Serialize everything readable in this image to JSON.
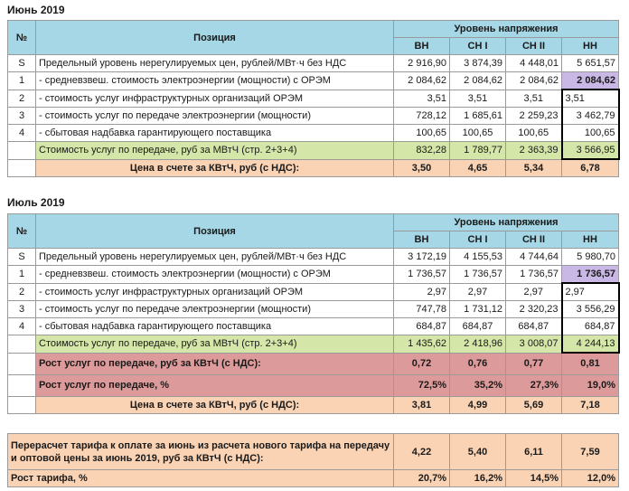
{
  "june": {
    "title": "Июнь 2019",
    "h_no": "№",
    "h_pos": "Позиция",
    "h_level": "Уровень напряжения",
    "cols": [
      "ВН",
      "СН I",
      "СН II",
      "НН"
    ],
    "rows": [
      {
        "id": "S",
        "label": "Предельный уровень нерегулируемых цен, рублей/МВт·ч без НДС",
        "v": [
          "2 916,90",
          "3 874,39",
          "4 448,01",
          "5 651,57"
        ]
      },
      {
        "id": "1",
        "label": "- средневзвеш. стоимость электроэнергии (мощности) с ОРЭМ",
        "v": [
          "2 084,62",
          "2 084,62",
          "2 084,62",
          "2 084,62"
        ]
      },
      {
        "id": "2",
        "label": "- стоимость услуг инфраструктурных организаций ОРЭМ",
        "v": [
          "3,51",
          "3,51",
          "3,51",
          "3,51"
        ]
      },
      {
        "id": "3",
        "label": "- стоимость услуг по передаче электроэнергии (мощности)",
        "v": [
          "728,12",
          "1 685,61",
          "2 259,23",
          "3 462,79"
        ]
      },
      {
        "id": "4",
        "label": "- сбытовая надбавка гарантирующего поставщика",
        "v": [
          "100,65",
          "100,65",
          "100,65",
          "100,65"
        ]
      }
    ],
    "cost": {
      "label": "Стоимость услуг по передаче, руб за МВтЧ (стр. 2+3+4)",
      "v": [
        "832,28",
        "1 789,77",
        "2 363,39",
        "3 566,95"
      ]
    },
    "price": {
      "label": "Цена в счете за КВтЧ, руб (с НДС):",
      "v": [
        "3,50",
        "4,65",
        "5,34",
        "6,78"
      ]
    }
  },
  "july": {
    "title": "Июль 2019",
    "h_no": "№",
    "h_pos": "Позиция",
    "h_level": "Уровень напряжения",
    "cols": [
      "ВН",
      "СН I",
      "СН II",
      "НН"
    ],
    "rows": [
      {
        "id": "S",
        "label": "Предельный уровень нерегулируемых цен, рублей/МВт·ч без НДС",
        "v": [
          "3 172,19",
          "4 155,53",
          "4 744,64",
          "5 980,70"
        ]
      },
      {
        "id": "1",
        "label": "- средневзвеш. стоимость электроэнергии (мощности) с ОРЭМ",
        "v": [
          "1 736,57",
          "1 736,57",
          "1 736,57",
          "1 736,57"
        ]
      },
      {
        "id": "2",
        "label": "- стоимость услуг инфраструктурных организаций ОРЭМ",
        "v": [
          "2,97",
          "2,97",
          "2,97",
          "2,97"
        ]
      },
      {
        "id": "3",
        "label": "- стоимость услуг по передаче электроэнергии (мощности)",
        "v": [
          "747,78",
          "1 731,12",
          "2 320,23",
          "3 556,29"
        ]
      },
      {
        "id": "4",
        "label": "- сбытовая надбавка гарантирующего поставщика",
        "v": [
          "684,87",
          "684,87",
          "684,87",
          "684,87"
        ]
      }
    ],
    "cost": {
      "label": "Стоимость услуг по передаче, руб за МВтЧ (стр. 2+3+4)",
      "v": [
        "1 435,62",
        "2 418,96",
        "3 008,07",
        "4 244,13"
      ]
    },
    "growth_rub": {
      "label": "Рост услуг по передаче, руб за КВтЧ (с НДС):",
      "v": [
        "0,72",
        "0,76",
        "0,77",
        "0,81"
      ]
    },
    "growth_pct": {
      "label": "Рост услуг по передаче, %",
      "v": [
        "72,5%",
        "35,2%",
        "27,3%",
        "19,0%"
      ]
    },
    "price": {
      "label": "Цена в счете за КВтЧ, руб (с НДС):",
      "v": [
        "3,81",
        "4,99",
        "5,69",
        "7,18"
      ]
    }
  },
  "recalc": {
    "label": "Перерасчет тарифа к оплате за июнь из расчета нового тарифа на передачу и оптовой цены за июнь 2019, руб за КВтЧ (с НДС):",
    "v": [
      "4,22",
      "5,40",
      "6,11",
      "7,59"
    ],
    "growth_label": "Рост тарифа, %",
    "growth_v": [
      "20,7%",
      "16,2%",
      "14,5%",
      "12,0%"
    ]
  }
}
